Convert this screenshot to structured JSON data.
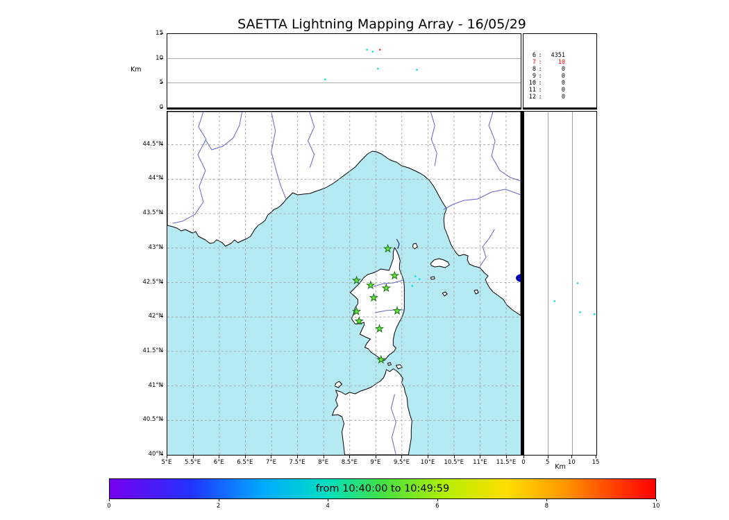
{
  "colors": {
    "sea": "#b6eaf2",
    "land": "#ffffff",
    "coast": "#000000",
    "river": "#6161d0",
    "grid": "#999999",
    "station_fill": "#66e838",
    "station_edge": "#1b6e1b",
    "lake": "#0000b4",
    "point_cyan": "#00dde0",
    "point_red": "#ff2222",
    "flash": "#000080",
    "highlight_text": "#ff0000"
  },
  "stats": {
    "separator": ":"
  },
  "chart_data": {
    "type": "scatter",
    "title": "SAETTA Lightning Mapping Array - 16/05/29",
    "date": "16/05/29",
    "map_panel": {
      "xlim": [
        5,
        11.78
      ],
      "ylim": [
        40,
        44.98
      ],
      "xticks": [
        {
          "v": 5,
          "label": "5°E"
        },
        {
          "v": 5.5,
          "label": "5.5°E"
        },
        {
          "v": 6,
          "label": "6°E"
        },
        {
          "v": 6.5,
          "label": "6.5°E"
        },
        {
          "v": 7,
          "label": "7°E"
        },
        {
          "v": 7.5,
          "label": "7.5°E"
        },
        {
          "v": 8,
          "label": "8°E"
        },
        {
          "v": 8.5,
          "label": "8.5°E"
        },
        {
          "v": 9,
          "label": "9°E"
        },
        {
          "v": 9.5,
          "label": "9.5°E"
        },
        {
          "v": 10,
          "label": "10°E"
        },
        {
          "v": 10.5,
          "label": "10.5°E"
        },
        {
          "v": 11,
          "label": "11°E"
        },
        {
          "v": 11.5,
          "label": "11.5°E"
        }
      ],
      "yticks": [
        {
          "v": 40,
          "label": "40°N"
        },
        {
          "v": 40.5,
          "label": "40.5°N"
        },
        {
          "v": 41,
          "label": "41°N"
        },
        {
          "v": 41.5,
          "label": "41.5°N"
        },
        {
          "v": 42,
          "label": "42°N"
        },
        {
          "v": 42.5,
          "label": "42.5°N"
        },
        {
          "v": 43,
          "label": "43°N"
        },
        {
          "v": 43.5,
          "label": "43.5°N"
        },
        {
          "v": 44,
          "label": "44°N"
        },
        {
          "v": 44.5,
          "label": "44.5°N"
        }
      ],
      "stations_lma": [
        [
          9.23,
          42.99
        ],
        [
          9.36,
          42.6
        ],
        [
          8.63,
          42.53
        ],
        [
          8.9,
          42.46
        ],
        [
          9.2,
          42.42
        ],
        [
          8.96,
          42.28
        ],
        [
          8.63,
          42.08
        ],
        [
          9.41,
          42.09
        ],
        [
          8.68,
          41.94
        ],
        [
          9.07,
          41.83
        ],
        [
          9.1,
          41.38
        ]
      ],
      "lightning_points": [
        {
          "lon": 9.76,
          "lat": 42.59,
          "c": "cyan"
        },
        {
          "lon": 9.84,
          "lat": 42.55,
          "c": "cyan"
        },
        {
          "lon": 9.7,
          "lat": 42.45,
          "c": "cyan"
        }
      ],
      "flash_track": [
        [
          9.4,
          43.13
        ],
        [
          9.45,
          43.06
        ],
        [
          9.42,
          42.99
        ]
      ]
    },
    "alt_lon_panel": {
      "ylabel": "Km",
      "ylim": [
        0,
        15
      ],
      "yticks": [
        0,
        5,
        10,
        15
      ],
      "points": [
        {
          "lon": 8.83,
          "alt": 11.8,
          "c": "cyan"
        },
        {
          "lon": 8.94,
          "alt": 11.4,
          "c": "cyan"
        },
        {
          "lon": 9.08,
          "alt": 11.8,
          "c": "red"
        },
        {
          "lon": 9.04,
          "alt": 7.9,
          "c": "cyan"
        },
        {
          "lon": 8.03,
          "alt": 5.7,
          "c": "cyan"
        },
        {
          "lon": 9.79,
          "alt": 7.7,
          "c": "cyan"
        }
      ]
    },
    "alt_lat_panel": {
      "xlabel": "Km",
      "xlim": [
        0,
        15
      ],
      "xticks": [
        0,
        5,
        10,
        15
      ],
      "points": [
        {
          "lat": 42.49,
          "alt": 11.1,
          "c": "cyan"
        },
        {
          "lat": 42.23,
          "alt": 6.3,
          "c": "cyan"
        },
        {
          "lat": 42.07,
          "alt": 11.6,
          "c": "cyan"
        },
        {
          "lat": 42.04,
          "alt": 14.6,
          "c": "cyan"
        }
      ]
    },
    "source_count_by_altitude_km": [
      {
        "bin": "6",
        "count": 4351,
        "highlight": false
      },
      {
        "bin": "7",
        "count": 10,
        "highlight": true
      },
      {
        "bin": "8",
        "count": 0,
        "highlight": false
      },
      {
        "bin": "9",
        "count": 0,
        "highlight": false
      },
      {
        "bin": "10",
        "count": 0,
        "highlight": false
      },
      {
        "bin": "11",
        "count": 0,
        "highlight": false
      },
      {
        "bin": "12",
        "count": 0,
        "highlight": false
      }
    ],
    "colorbar": {
      "label": "from 10:40:00 to 10:49:59",
      "range": [
        0,
        10
      ],
      "ticks": [
        0,
        2,
        4,
        6,
        8,
        10
      ],
      "colormap": "rainbow",
      "gradient": [
        [
          0,
          "#7700ee"
        ],
        [
          15,
          "#2233ff"
        ],
        [
          28,
          "#00aaff"
        ],
        [
          40,
          "#00e0c0"
        ],
        [
          50,
          "#44e044"
        ],
        [
          62,
          "#b8ee00"
        ],
        [
          73,
          "#ffdd00"
        ],
        [
          83,
          "#ff9900"
        ],
        [
          92,
          "#ff4400"
        ],
        [
          100,
          "#ff0000"
        ]
      ]
    }
  }
}
